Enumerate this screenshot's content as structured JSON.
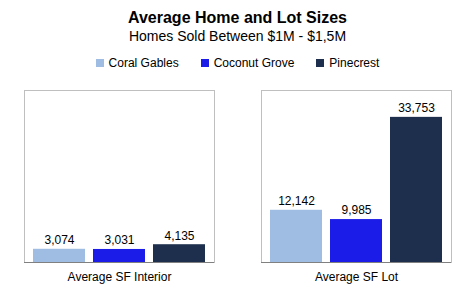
{
  "chart_data": {
    "type": "bar",
    "title": "Average Home and Lot Sizes",
    "subtitle": "Homes Sold Between $1M - $1,5M",
    "categories": [
      "Average SF Interior",
      "Average SF Lot"
    ],
    "series": [
      {
        "name": "Coral Gables",
        "color": "#9fbde3",
        "values": [
          3074,
          12142
        ],
        "value_labels": [
          "3,074",
          "12,142"
        ]
      },
      {
        "name": "Coconut Grove",
        "color": "#1c1ce8",
        "values": [
          3031,
          9985
        ],
        "value_labels": [
          "3,031",
          "9,985"
        ]
      },
      {
        "name": "Pinecrest",
        "color": "#1d2f4c",
        "values": [
          4135,
          33753
        ],
        "value_labels": [
          "4,135",
          "33,753"
        ]
      }
    ],
    "ylim": [
      0,
      40000
    ],
    "yticks": [],
    "grid": false,
    "legend": "top",
    "data_labels": true,
    "tick_labels": "x"
  }
}
